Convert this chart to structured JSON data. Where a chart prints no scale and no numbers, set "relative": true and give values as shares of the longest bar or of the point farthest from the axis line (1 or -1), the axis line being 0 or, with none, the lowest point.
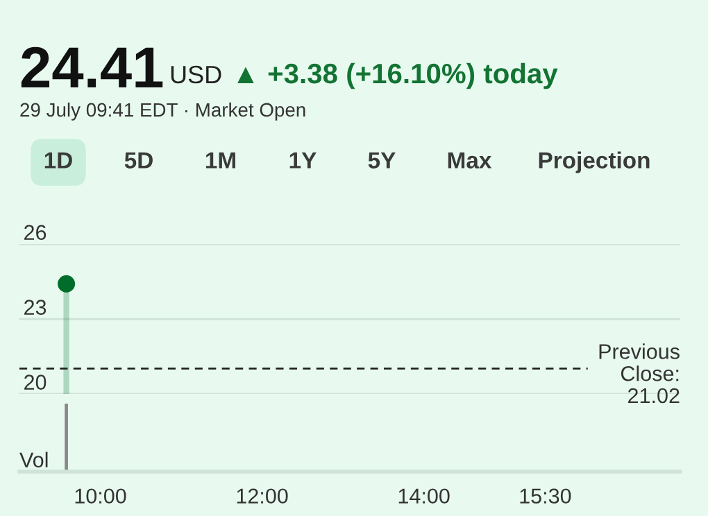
{
  "chart_data": [
    {
      "type": "lollipop",
      "title": "24.41",
      "annotations": [
        "USD",
        "▲ +3.38 (+16.10%) today",
        "29 July 09:41 EDT · Market Open",
        "1D",
        "5D",
        "1M",
        "1Y",
        "5Y",
        "Max",
        "Projection"
      ],
      "x": [
        9.58
      ],
      "xlim": [
        9.0,
        17.17
      ],
      "series": [
        {
          "color": "#006e2a",
          "values": [
            24.41
          ]
        }
      ],
      "ylim": [
        20,
        26
      ],
      "yticks": [
        20,
        23,
        26
      ],
      "grid": "y",
      "marker": "circle",
      "tick_labels": "y",
      "ref_lines": [
        {
          "axis": "y",
          "value": 21.02,
          "label": "Previous\nClose:\n21.02",
          "color": "#222222",
          "line_style": "dashed"
        }
      ]
    },
    {
      "type": "bar",
      "ylabel": "Vol",
      "x": [
        9.58
      ],
      "xlim": [
        9.0,
        17.17
      ],
      "relative": true,
      "tick_labels": "x",
      "series": [
        {
          "color": "#888888",
          "values": [
            1
          ]
        }
      ],
      "xticks": [
        {
          "value": 10,
          "label": "10:00"
        },
        {
          "value": 12,
          "label": "12:00"
        },
        {
          "value": 14,
          "label": "14:00"
        },
        {
          "value": 15.5,
          "label": "15:30"
        }
      ]
    }
  ]
}
